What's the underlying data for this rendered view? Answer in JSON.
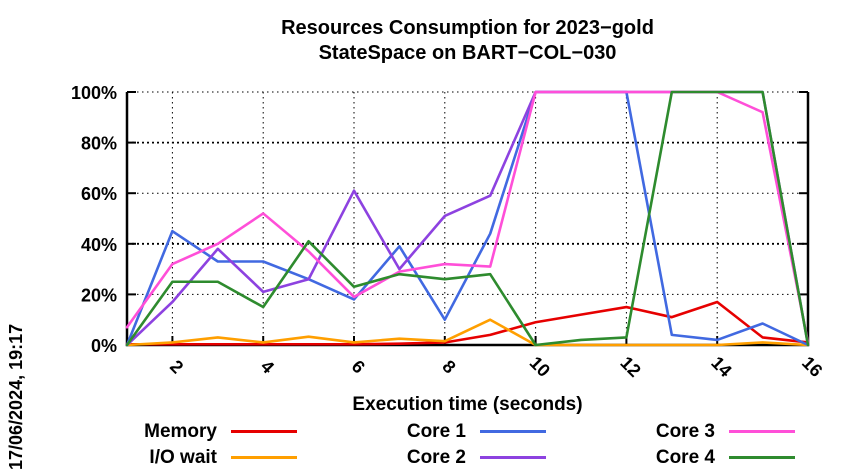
{
  "title": {
    "line1": "Resources Consumption for 2023−gold",
    "line2": "StateSpace on BART−COL−030"
  },
  "timestamp": "17/06/2024, 19:17",
  "chart_data": {
    "type": "line",
    "title": "Resources Consumption for 2023-gold StateSpace on BART-COL-030",
    "xlabel": "Execution time (seconds)",
    "ylabel": "",
    "xlim": [
      1,
      16
    ],
    "ylim": [
      0,
      100
    ],
    "grid": true,
    "legend_position": "bottom",
    "x_ticks": [
      2,
      4,
      6,
      8,
      10,
      12,
      14,
      16
    ],
    "y_ticks": [
      {
        "v": 0,
        "label": "0%"
      },
      {
        "v": 20,
        "label": "20%"
      },
      {
        "v": 40,
        "label": "40%"
      },
      {
        "v": 60,
        "label": "60%"
      },
      {
        "v": 80,
        "label": "80%"
      },
      {
        "v": 100,
        "label": "100%"
      }
    ],
    "x": [
      1,
      2,
      3,
      4,
      5,
      6,
      7,
      8,
      9,
      10,
      11,
      12,
      13,
      14,
      15,
      16
    ],
    "series": [
      {
        "name": "Memory",
        "color": "#e60000",
        "values": [
          0.3,
          0.3,
          0.3,
          0.3,
          0.3,
          0.3,
          0.5,
          1,
          4,
          9,
          12,
          15,
          11,
          17,
          3,
          1
        ]
      },
      {
        "name": "I/O wait",
        "color": "#ff9f00",
        "values": [
          0,
          1,
          3,
          1,
          3.3,
          1,
          2.5,
          1.5,
          10,
          0,
          0,
          0,
          0,
          0,
          1,
          0
        ]
      },
      {
        "name": "Core 1",
        "color": "#4169e1",
        "values": [
          0,
          45,
          33,
          33,
          26,
          18,
          39,
          10,
          44,
          100,
          100,
          100,
          4,
          2,
          8.5,
          0
        ]
      },
      {
        "name": "Core 2",
        "color": "#8d42e0",
        "values": [
          0,
          17,
          38,
          21,
          26,
          61,
          30,
          51,
          59,
          100,
          100,
          100,
          100,
          100,
          100,
          0
        ]
      },
      {
        "name": "Core 3",
        "color": "#ff4fd8",
        "values": [
          7,
          32,
          40,
          52,
          37,
          19,
          29,
          32,
          31,
          100,
          100,
          100,
          100,
          100,
          92,
          1
        ]
      },
      {
        "name": "Core 4",
        "color": "#2e8b2e",
        "values": [
          0,
          25,
          25,
          15,
          41,
          23,
          28,
          26,
          28,
          0,
          2,
          3,
          100,
          100,
          100,
          0
        ]
      }
    ],
    "legend_columns": [
      [
        0,
        1
      ],
      [
        2,
        3
      ],
      [
        4,
        5
      ]
    ]
  }
}
